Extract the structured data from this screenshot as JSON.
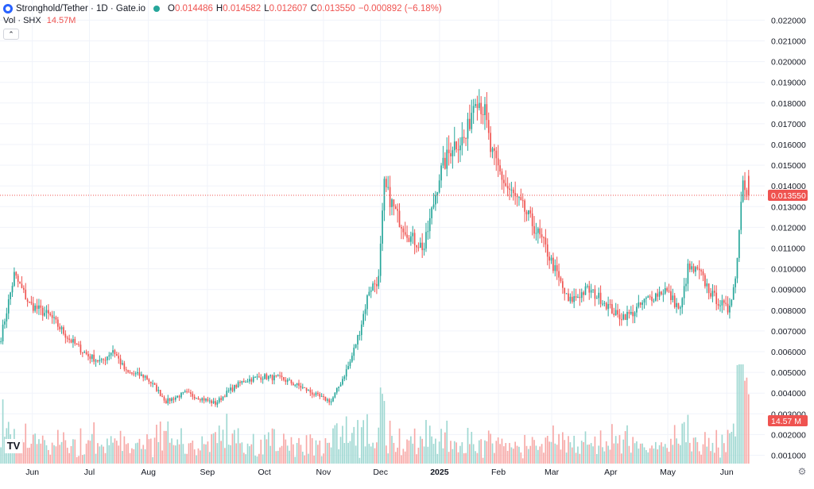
{
  "legend": {
    "symbol": "Stronghold/Tether · 1D · Gate.io",
    "o_label": "O",
    "o_value": "0.014486",
    "h_label": "H",
    "h_value": "0.014582",
    "l_label": "L",
    "l_value": "0.012607",
    "c_label": "C",
    "c_value": "0.013550",
    "change": "−0.000892 (−6.18%)"
  },
  "volume_legend": {
    "label": "Vol · SHX",
    "value": "14.57M"
  },
  "collapse_icon": "chevron-up-icon",
  "logo_text": "TV",
  "settings_icon": "gear-icon",
  "colors": {
    "up": "#26a69a",
    "down": "#ef5350",
    "up_vol": "#9fd8d2",
    "down_vol": "#f7a9a7",
    "text": "#131722",
    "grid": "#f0f3fa",
    "axis_text": "#131722"
  },
  "chart_data": {
    "type": "candlestick",
    "price_axis": {
      "ticks": [
        "0.001000",
        "0.002000",
        "0.003000",
        "0.004000",
        "0.005000",
        "0.006000",
        "0.007000",
        "0.008000",
        "0.009000",
        "0.010000",
        "0.011000",
        "0.012000",
        "0.013000",
        "0.014000",
        "0.015000",
        "0.016000",
        "0.017000",
        "0.018000",
        "0.019000",
        "0.020000",
        "0.021000",
        "0.022000"
      ],
      "range": [
        0.0005,
        0.0228
      ]
    },
    "time_axis": {
      "ticks": [
        "Jun",
        "Jul",
        "Aug",
        "Sep",
        "Oct",
        "Nov",
        "Dec",
        "2025",
        "Feb",
        "Mar",
        "Apr",
        "May",
        "Jun"
      ]
    },
    "last_price": "0.013550",
    "volume_last": "14.57 M",
    "close_path": [
      [
        "2024-05-15",
        0.0067
      ],
      [
        "2024-05-22",
        0.0097
      ],
      [
        "2024-05-30",
        0.0083
      ],
      [
        "2024-06-10",
        0.0077
      ],
      [
        "2024-06-20",
        0.0066
      ],
      [
        "2024-06-30",
        0.0058
      ],
      [
        "2024-07-07",
        0.0055
      ],
      [
        "2024-07-13",
        0.0061
      ],
      [
        "2024-07-20",
        0.005
      ],
      [
        "2024-07-30",
        0.0048
      ],
      [
        "2024-08-05",
        0.0042
      ],
      [
        "2024-08-10",
        0.0036
      ],
      [
        "2024-08-20",
        0.004
      ],
      [
        "2024-08-30",
        0.0037
      ],
      [
        "2024-09-05",
        0.0035
      ],
      [
        "2024-09-12",
        0.0041
      ],
      [
        "2024-09-20",
        0.0046
      ],
      [
        "2024-09-30",
        0.0048
      ],
      [
        "2024-10-10",
        0.0047
      ],
      [
        "2024-10-20",
        0.0043
      ],
      [
        "2024-10-30",
        0.0038
      ],
      [
        "2024-11-05",
        0.0036
      ],
      [
        "2024-11-10",
        0.0045
      ],
      [
        "2024-11-15",
        0.0055
      ],
      [
        "2024-11-20",
        0.007
      ],
      [
        "2024-11-25",
        0.009
      ],
      [
        "2024-11-30",
        0.0095
      ],
      [
        "2024-12-03",
        0.014
      ],
      [
        "2024-12-10",
        0.0125
      ],
      [
        "2024-12-17",
        0.0115
      ],
      [
        "2024-12-24",
        0.011
      ],
      [
        "2025-01-01",
        0.0145
      ],
      [
        "2025-01-08",
        0.016
      ],
      [
        "2025-01-15",
        0.0163
      ],
      [
        "2025-01-20",
        0.0185
      ],
      [
        "2025-01-25",
        0.0175
      ],
      [
        "2025-01-28",
        0.0157
      ],
      [
        "2025-02-05",
        0.014
      ],
      [
        "2025-02-15",
        0.0128
      ],
      [
        "2025-02-25",
        0.0112
      ],
      [
        "2025-03-05",
        0.0095
      ],
      [
        "2025-03-10",
        0.0084
      ],
      [
        "2025-03-20",
        0.009
      ],
      [
        "2025-03-28",
        0.0085
      ],
      [
        "2025-04-05",
        0.0077
      ],
      [
        "2025-04-12",
        0.0078
      ],
      [
        "2025-04-20",
        0.0085
      ],
      [
        "2025-04-30",
        0.009
      ],
      [
        "2025-05-08",
        0.008
      ],
      [
        "2025-05-12",
        0.01
      ],
      [
        "2025-05-18",
        0.0098
      ],
      [
        "2025-05-25",
        0.0087
      ],
      [
        "2025-06-02",
        0.008
      ],
      [
        "2025-06-06",
        0.0095
      ],
      [
        "2025-06-10",
        0.0145
      ],
      [
        "2025-06-13",
        0.01355
      ]
    ]
  }
}
